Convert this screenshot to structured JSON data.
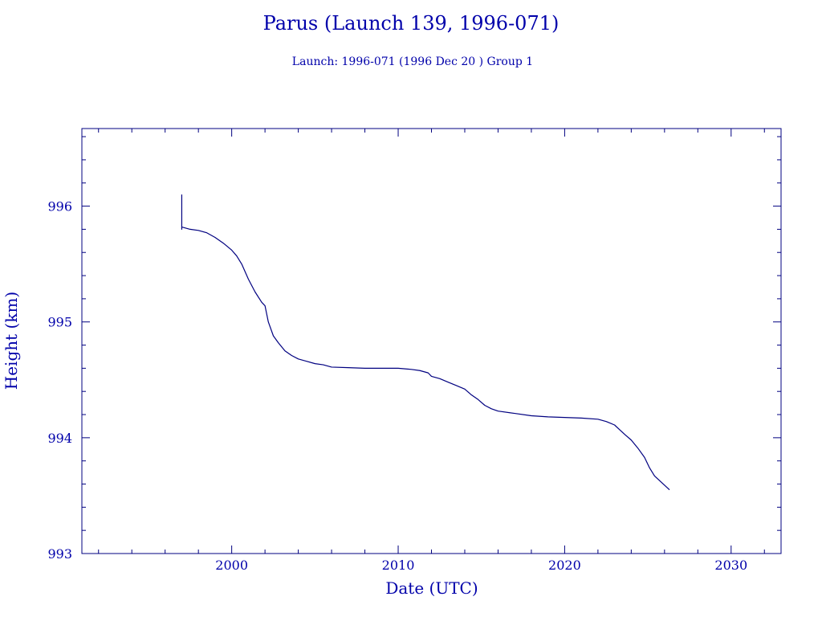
{
  "chart_data": {
    "type": "line",
    "title": "Parus (Launch 139, 1996-071)",
    "subtitle": "Launch: 1996-071  (1996 Dec 20 )  Group 1",
    "xlabel": "Date (UTC)",
    "ylabel": "Height (km)",
    "xlim": [
      1991,
      2033
    ],
    "ylim": [
      993,
      996.67
    ],
    "xticks": [
      2000,
      2010,
      2020,
      2030
    ],
    "xtick_labels": [
      "2000",
      "2010",
      "2020",
      "2030"
    ],
    "yticks": [
      993,
      994,
      995,
      996
    ],
    "ytick_labels": [
      "993",
      "994",
      "995",
      "996"
    ],
    "grid": false,
    "colors": {
      "text": "#0000aa",
      "line": "#000080",
      "frame": "#000080"
    },
    "series": [
      {
        "x": [
          1997.0,
          1997.0,
          1997.0,
          1997.5,
          1998.0,
          1998.5,
          1999.0,
          1999.5,
          2000.0,
          2000.3,
          2000.6,
          2001.0,
          2001.4,
          2001.8,
          2002.0,
          2002.2,
          2002.5,
          2002.8,
          2003.2,
          2003.6,
          2004.0,
          2004.5,
          2005.0,
          2005.5,
          2006.0,
          2007.0,
          2008.0,
          2009.0,
          2010.0,
          2010.8,
          2011.3,
          2011.8,
          2012.0,
          2012.5,
          2013.0,
          2013.5,
          2014.0,
          2014.4,
          2014.8,
          2015.2,
          2015.6,
          2016.0,
          2017.0,
          2018.0,
          2019.0,
          2020.0,
          2021.0,
          2022.0,
          2022.5,
          2023.0,
          2023.3,
          2023.6,
          2024.0,
          2024.4,
          2024.8,
          2025.1,
          2025.4,
          2025.7,
          2026.0,
          2026.3
        ],
        "y": [
          996.1,
          995.8,
          995.82,
          995.8,
          995.79,
          995.77,
          995.73,
          995.68,
          995.62,
          995.57,
          995.5,
          995.37,
          995.26,
          995.17,
          995.14,
          995.0,
          994.88,
          994.82,
          994.75,
          994.71,
          994.68,
          994.66,
          994.64,
          994.63,
          994.61,
          994.605,
          994.6,
          994.6,
          994.6,
          994.59,
          994.58,
          994.56,
          994.53,
          994.51,
          994.48,
          994.45,
          994.42,
          994.37,
          994.33,
          994.28,
          994.25,
          994.23,
          994.21,
          994.19,
          994.18,
          994.175,
          994.17,
          994.16,
          994.14,
          994.11,
          994.07,
          994.03,
          993.98,
          993.91,
          993.83,
          993.74,
          993.67,
          993.63,
          993.59,
          993.55
        ]
      }
    ]
  }
}
